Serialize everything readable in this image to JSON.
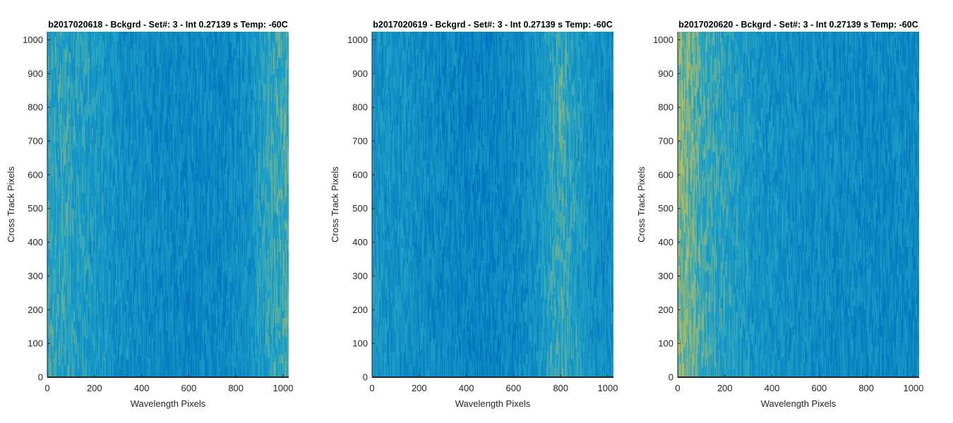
{
  "figure": {
    "background": "#ffffff"
  },
  "chart_data": [
    {
      "type": "heatmap",
      "title": "b2017020618 - Bckgrd - Set#: 3 - Int 0.27139 s Temp: -60C",
      "xlabel": "Wavelength Pixels",
      "ylabel": "Cross Track Pixels",
      "xlim": [
        0,
        1024
      ],
      "ylim": [
        0,
        1024
      ],
      "xticks": [
        0,
        200,
        400,
        600,
        800,
        1000
      ],
      "yticks": [
        0,
        100,
        200,
        300,
        400,
        500,
        600,
        700,
        800,
        900,
        1000
      ],
      "grid": false,
      "colormap": "parula",
      "low_color": "#0072BD",
      "mid_color": "#1FA3C8",
      "high_color": "#E8C43A",
      "column_profile": {
        "x": [
          0,
          60,
          150,
          250,
          350,
          450,
          550,
          650,
          750,
          850,
          920,
          1024
        ],
        "level": [
          0.52,
          0.5,
          0.44,
          0.36,
          0.28,
          0.24,
          0.22,
          0.22,
          0.23,
          0.3,
          0.48,
          0.58
        ]
      }
    },
    {
      "type": "heatmap",
      "title": "b2017020619 - Bckgrd - Set#: 3 - Int 0.27139 s Temp: -60C",
      "xlabel": "Wavelength Pixels",
      "ylabel": "Cross Track Pixels",
      "xlim": [
        0,
        1024
      ],
      "ylim": [
        0,
        1024
      ],
      "xticks": [
        0,
        200,
        400,
        600,
        800,
        1000
      ],
      "yticks": [
        0,
        100,
        200,
        300,
        400,
        500,
        600,
        700,
        800,
        900,
        1000
      ],
      "grid": false,
      "colormap": "parula",
      "low_color": "#0072BD",
      "mid_color": "#1FA3C8",
      "high_color": "#E8C43A",
      "column_profile": {
        "x": [
          0,
          100,
          200,
          300,
          400,
          500,
          600,
          700,
          750,
          800,
          850,
          950,
          1024
        ],
        "level": [
          0.36,
          0.32,
          0.27,
          0.22,
          0.18,
          0.18,
          0.22,
          0.32,
          0.46,
          0.56,
          0.46,
          0.3,
          0.28
        ]
      }
    },
    {
      "type": "heatmap",
      "title": "b2017020620 - Bckgrd - Set#: 3 - Int 0.27139 s Temp: -60C",
      "xlabel": "Wavelength Pixels",
      "ylabel": "Cross Track Pixels",
      "xlim": [
        0,
        1024
      ],
      "ylim": [
        0,
        1024
      ],
      "xticks": [
        0,
        200,
        400,
        600,
        800,
        1000
      ],
      "yticks": [
        0,
        100,
        200,
        300,
        400,
        500,
        600,
        700,
        800,
        900,
        1000
      ],
      "grid": false,
      "colormap": "parula",
      "low_color": "#0072BD",
      "mid_color": "#1FA3C8",
      "high_color": "#E8C43A",
      "column_profile": {
        "x": [
          0,
          20,
          60,
          120,
          200,
          300,
          400,
          500,
          600,
          700,
          800,
          900,
          1024
        ],
        "level": [
          0.72,
          0.74,
          0.66,
          0.56,
          0.46,
          0.38,
          0.32,
          0.28,
          0.26,
          0.24,
          0.23,
          0.23,
          0.24
        ]
      }
    }
  ]
}
